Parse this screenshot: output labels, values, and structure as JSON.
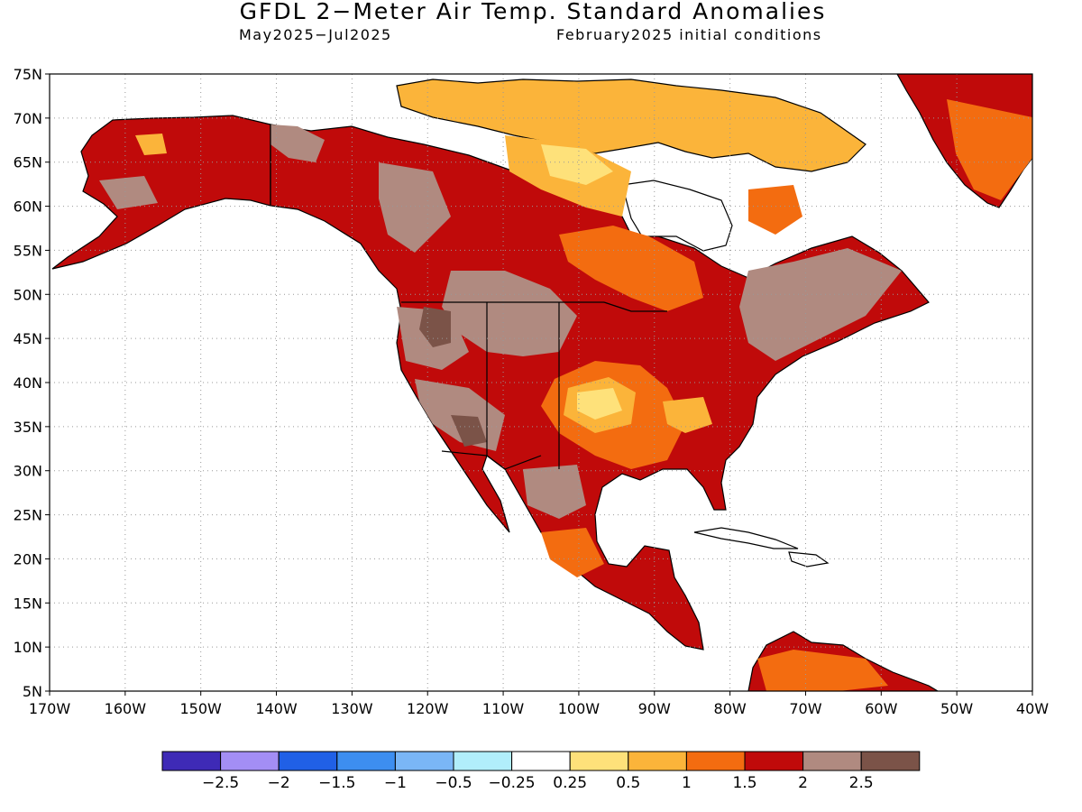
{
  "title": "GFDL 2−Meter Air Temp. Standard Anomalies",
  "subtitle_left": "May2025−Jul2025",
  "subtitle_right": "February2025 initial conditions",
  "map": {
    "lon_range": [
      -170,
      -40
    ],
    "lat_range": [
      5,
      75
    ],
    "lat_ticks": [
      "75N",
      "70N",
      "65N",
      "60N",
      "55N",
      "50N",
      "45N",
      "40N",
      "35N",
      "30N",
      "25N",
      "20N",
      "15N",
      "10N",
      "5N"
    ],
    "lon_ticks": [
      "170W",
      "160W",
      "150W",
      "140W",
      "130W",
      "120W",
      "110W",
      "100W",
      "90W",
      "80W",
      "70W",
      "60W",
      "50W",
      "40W"
    ],
    "gridlines": "dotted"
  },
  "colorbar": {
    "colors": [
      "#3e2ab6",
      "#a38ef5",
      "#2060e6",
      "#3d8ef0",
      "#7ab6f6",
      "#b1eefb",
      "#ffffff",
      "#fee17a",
      "#fbb43a",
      "#f36c10",
      "#c00a0a",
      "#b08a80",
      "#7b5348"
    ],
    "labels": [
      "−2.5",
      "−2",
      "−1.5",
      "−1",
      "−0.5",
      "−0.25",
      "0.25",
      "0.5",
      "1",
      "1.5",
      "2",
      "2.5"
    ]
  }
}
